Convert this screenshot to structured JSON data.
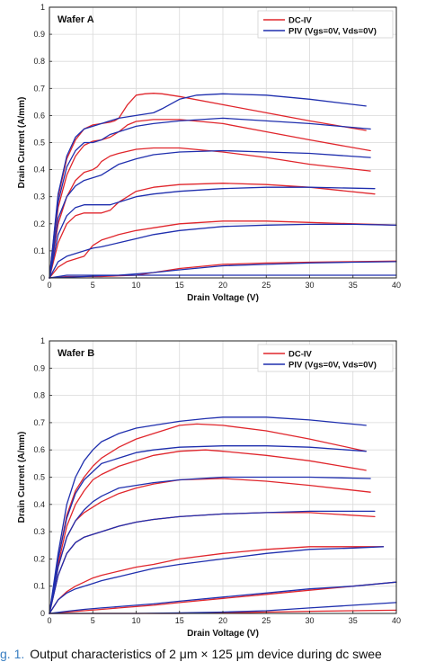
{
  "caption": {
    "figure_label": "g. 1.",
    "text": "Output characteristics of 2 μm × 125 μm device during dc swee"
  },
  "chart_data": [
    {
      "type": "line",
      "panel_label": "Wafer A",
      "xlabel": "Drain Voltage (V)",
      "ylabel": "Drain Current (A/mm)",
      "xlim": [
        0,
        40
      ],
      "ylim": [
        0,
        1
      ],
      "xticks": [
        "0",
        "5",
        "10",
        "15",
        "20",
        "25",
        "30",
        "35",
        "40"
      ],
      "yticks": [
        "0",
        "0.1",
        "0.2",
        "0.3",
        "0.4",
        "0.5",
        "0.6",
        "0.7",
        "0.8",
        "0.9",
        "1"
      ],
      "grid": true,
      "legend_position": "top-right",
      "legend": [
        {
          "label": "DC-IV",
          "color": "#e0262c"
        },
        {
          "label": "PIV (Vgs=0V, Vds=0V)",
          "color": "#1f2fae"
        }
      ],
      "series": [
        {
          "group": "DC-IV",
          "color": "#e0262c",
          "x": [
            0,
            1,
            2,
            3,
            4,
            5,
            6,
            7,
            7.5,
            8,
            9,
            10,
            11,
            12,
            13,
            15,
            20,
            25,
            30,
            36.5
          ],
          "y": [
            0,
            0.3,
            0.44,
            0.51,
            0.55,
            0.565,
            0.57,
            0.575,
            0.58,
            0.59,
            0.64,
            0.675,
            0.68,
            0.682,
            0.68,
            0.67,
            0.64,
            0.61,
            0.58,
            0.545
          ]
        },
        {
          "group": "DC-IV",
          "color": "#e0262c",
          "x": [
            0,
            1,
            2,
            3,
            4,
            5,
            6,
            7,
            8,
            9,
            10,
            12,
            15,
            20,
            25,
            30,
            37
          ],
          "y": [
            0,
            0.26,
            0.38,
            0.45,
            0.49,
            0.505,
            0.51,
            0.52,
            0.54,
            0.565,
            0.578,
            0.585,
            0.585,
            0.57,
            0.54,
            0.51,
            0.47
          ]
        },
        {
          "group": "DC-IV",
          "color": "#e0262c",
          "x": [
            0,
            1,
            2,
            3,
            4,
            5,
            5.5,
            6,
            7,
            8,
            10,
            12,
            15,
            20,
            25,
            30,
            37
          ],
          "y": [
            0,
            0.2,
            0.3,
            0.36,
            0.39,
            0.4,
            0.41,
            0.43,
            0.45,
            0.46,
            0.475,
            0.48,
            0.48,
            0.465,
            0.445,
            0.42,
            0.395
          ]
        },
        {
          "group": "DC-IV",
          "color": "#e0262c",
          "x": [
            0,
            1,
            2,
            3,
            4,
            5,
            6,
            7,
            8,
            10,
            12,
            15,
            20,
            25,
            30,
            37.5
          ],
          "y": [
            0,
            0.13,
            0.2,
            0.23,
            0.24,
            0.24,
            0.24,
            0.25,
            0.28,
            0.32,
            0.335,
            0.345,
            0.35,
            0.345,
            0.335,
            0.31
          ]
        },
        {
          "group": "DC-IV",
          "color": "#e0262c",
          "x": [
            0,
            1,
            2,
            3,
            4,
            5,
            6,
            7,
            8,
            10,
            12,
            15,
            20,
            25,
            30,
            35,
            40
          ],
          "y": [
            0,
            0.04,
            0.06,
            0.07,
            0.08,
            0.12,
            0.14,
            0.15,
            0.16,
            0.175,
            0.185,
            0.2,
            0.21,
            0.21,
            0.205,
            0.2,
            0.195
          ]
        },
        {
          "group": "DC-IV",
          "color": "#e0262c",
          "x": [
            0,
            2,
            4,
            6,
            8,
            10,
            12,
            15,
            20,
            25,
            30,
            35,
            40
          ],
          "y": [
            0,
            0.005,
            0.005,
            0.005,
            0.008,
            0.01,
            0.02,
            0.035,
            0.05,
            0.055,
            0.058,
            0.06,
            0.062
          ]
        },
        {
          "group": "PIV",
          "color": "#1f2fae",
          "x": [
            0,
            1,
            2,
            3,
            4,
            5,
            6,
            7,
            8,
            9,
            10,
            11,
            12,
            13,
            15,
            17,
            20,
            25,
            30,
            36.5
          ],
          "y": [
            0,
            0.31,
            0.45,
            0.52,
            0.55,
            0.56,
            0.57,
            0.58,
            0.59,
            0.595,
            0.6,
            0.605,
            0.61,
            0.625,
            0.66,
            0.675,
            0.68,
            0.675,
            0.66,
            0.635
          ]
        },
        {
          "group": "PIV",
          "color": "#1f2fae",
          "x": [
            0,
            1,
            2,
            3,
            4,
            5,
            6,
            7,
            8,
            10,
            12,
            15,
            20,
            25,
            30,
            37
          ],
          "y": [
            0,
            0.28,
            0.41,
            0.47,
            0.5,
            0.5,
            0.51,
            0.53,
            0.54,
            0.56,
            0.57,
            0.58,
            0.59,
            0.58,
            0.57,
            0.55
          ]
        },
        {
          "group": "PIV",
          "color": "#1f2fae",
          "x": [
            0,
            1,
            2,
            3,
            4,
            5,
            6,
            7,
            8,
            10,
            12,
            15,
            20,
            25,
            30,
            37
          ],
          "y": [
            0,
            0.22,
            0.3,
            0.34,
            0.36,
            0.37,
            0.38,
            0.4,
            0.42,
            0.44,
            0.455,
            0.465,
            0.47,
            0.465,
            0.46,
            0.445
          ]
        },
        {
          "group": "PIV",
          "color": "#1f2fae",
          "x": [
            0,
            1,
            2,
            3,
            4,
            5,
            6,
            7,
            8,
            10,
            12,
            15,
            20,
            25,
            30,
            37.5
          ],
          "y": [
            0,
            0.16,
            0.23,
            0.26,
            0.27,
            0.27,
            0.27,
            0.27,
            0.28,
            0.3,
            0.31,
            0.32,
            0.33,
            0.335,
            0.335,
            0.33
          ]
        },
        {
          "group": "PIV",
          "color": "#1f2fae",
          "x": [
            0,
            1,
            2,
            3,
            4,
            5,
            6,
            8,
            10,
            12,
            15,
            20,
            25,
            30,
            35,
            40
          ],
          "y": [
            0,
            0.06,
            0.08,
            0.09,
            0.1,
            0.11,
            0.115,
            0.13,
            0.145,
            0.16,
            0.175,
            0.19,
            0.195,
            0.198,
            0.198,
            0.195
          ]
        },
        {
          "group": "PIV",
          "color": "#1f2fae",
          "x": [
            0,
            2,
            4,
            6,
            8,
            10,
            12,
            15,
            20,
            25,
            30,
            35,
            40
          ],
          "y": [
            0,
            0.01,
            0.01,
            0.01,
            0.01,
            0.01,
            0.01,
            0.01,
            0.01,
            0.01,
            0.01,
            0.01,
            0.01
          ]
        },
        {
          "group": "PIV",
          "color": "#1f2fae",
          "x": [
            0,
            2,
            4,
            6,
            8,
            10,
            12,
            15,
            20,
            25,
            30,
            35,
            40
          ],
          "y": [
            0,
            0.003,
            0.005,
            0.008,
            0.01,
            0.015,
            0.02,
            0.03,
            0.045,
            0.05,
            0.055,
            0.058,
            0.06
          ]
        }
      ]
    },
    {
      "type": "line",
      "panel_label": "Wafer B",
      "xlabel": "Drain Voltage (V)",
      "ylabel": "Drain Current (A/mm)",
      "xlim": [
        0,
        40
      ],
      "ylim": [
        0,
        1
      ],
      "xticks": [
        "0",
        "5",
        "10",
        "15",
        "20",
        "25",
        "30",
        "35",
        "40"
      ],
      "yticks": [
        "0",
        "0.1",
        "0.2",
        "0.3",
        "0.4",
        "0.5",
        "0.6",
        "0.7",
        "0.8",
        "0.9",
        "1"
      ],
      "grid": true,
      "legend_position": "top-right",
      "legend": [
        {
          "label": "DC-IV",
          "color": "#e0262c"
        },
        {
          "label": "PIV (Vgs=0V, Vds=0V)",
          "color": "#1f2fae"
        }
      ],
      "series": [
        {
          "group": "DC-IV",
          "color": "#e0262c",
          "x": [
            0,
            1,
            2,
            3,
            4,
            5,
            6,
            8,
            10,
            12,
            15,
            17,
            20,
            25,
            30,
            36.5
          ],
          "y": [
            0,
            0.2,
            0.36,
            0.45,
            0.5,
            0.54,
            0.57,
            0.61,
            0.64,
            0.66,
            0.69,
            0.695,
            0.69,
            0.67,
            0.64,
            0.595
          ]
        },
        {
          "group": "DC-IV",
          "color": "#e0262c",
          "x": [
            0,
            1,
            2,
            3,
            4,
            5,
            6,
            8,
            10,
            12,
            15,
            18,
            20,
            25,
            30,
            36.5
          ],
          "y": [
            0,
            0.18,
            0.32,
            0.4,
            0.45,
            0.49,
            0.51,
            0.54,
            0.56,
            0.58,
            0.595,
            0.6,
            0.595,
            0.58,
            0.56,
            0.525
          ]
        },
        {
          "group": "DC-IV",
          "color": "#e0262c",
          "x": [
            0,
            1,
            2,
            3,
            4,
            5,
            6,
            8,
            10,
            12,
            15,
            20,
            25,
            30,
            37
          ],
          "y": [
            0,
            0.17,
            0.28,
            0.34,
            0.37,
            0.39,
            0.41,
            0.44,
            0.46,
            0.475,
            0.49,
            0.495,
            0.485,
            0.47,
            0.445
          ]
        },
        {
          "group": "DC-IV",
          "color": "#e0262c",
          "x": [
            0,
            1,
            2,
            3,
            4,
            5,
            6,
            8,
            10,
            12,
            15,
            20,
            25,
            30,
            37.5
          ],
          "y": [
            0,
            0.14,
            0.22,
            0.26,
            0.28,
            0.29,
            0.3,
            0.32,
            0.335,
            0.345,
            0.355,
            0.365,
            0.37,
            0.37,
            0.355
          ]
        },
        {
          "group": "DC-IV",
          "color": "#e0262c",
          "x": [
            0,
            1,
            2,
            3,
            4,
            5,
            6,
            8,
            10,
            12,
            15,
            20,
            25,
            30,
            35,
            38.5
          ],
          "y": [
            0,
            0.05,
            0.08,
            0.1,
            0.115,
            0.13,
            0.14,
            0.155,
            0.17,
            0.18,
            0.2,
            0.22,
            0.235,
            0.245,
            0.245,
            0.245
          ]
        },
        {
          "group": "DC-IV",
          "color": "#e0262c",
          "x": [
            0,
            2,
            4,
            6,
            8,
            10,
            12,
            15,
            20,
            25,
            30,
            35,
            40
          ],
          "y": [
            0,
            0.005,
            0.01,
            0.015,
            0.02,
            0.025,
            0.03,
            0.04,
            0.055,
            0.07,
            0.085,
            0.1,
            0.115
          ]
        },
        {
          "group": "DC-IV",
          "color": "#e0262c",
          "x": [
            0,
            5,
            10,
            15,
            20,
            25,
            30,
            35,
            40
          ],
          "y": [
            0,
            0,
            0,
            0,
            0.002,
            0.005,
            0.008,
            0.01,
            0.012
          ]
        },
        {
          "group": "PIV",
          "color": "#1f2fae",
          "x": [
            0,
            1,
            2,
            3,
            4,
            5,
            6,
            8,
            10,
            12,
            15,
            18,
            20,
            25,
            30,
            36.5
          ],
          "y": [
            0,
            0.22,
            0.4,
            0.5,
            0.56,
            0.6,
            0.63,
            0.66,
            0.68,
            0.69,
            0.705,
            0.715,
            0.72,
            0.72,
            0.71,
            0.69
          ]
        },
        {
          "group": "PIV",
          "color": "#1f2fae",
          "x": [
            0,
            1,
            2,
            3,
            4,
            5,
            6,
            8,
            10,
            12,
            15,
            20,
            25,
            30,
            36.5
          ],
          "y": [
            0,
            0.2,
            0.35,
            0.44,
            0.49,
            0.52,
            0.55,
            0.57,
            0.59,
            0.6,
            0.61,
            0.615,
            0.615,
            0.61,
            0.595
          ]
        },
        {
          "group": "PIV",
          "color": "#1f2fae",
          "x": [
            0,
            1,
            2,
            3,
            4,
            5,
            6,
            8,
            10,
            12,
            15,
            20,
            25,
            30,
            37
          ],
          "y": [
            0,
            0.17,
            0.28,
            0.34,
            0.38,
            0.41,
            0.43,
            0.46,
            0.47,
            0.48,
            0.49,
            0.5,
            0.5,
            0.5,
            0.495
          ]
        },
        {
          "group": "PIV",
          "color": "#1f2fae",
          "x": [
            0,
            1,
            2,
            3,
            4,
            5,
            6,
            8,
            10,
            12,
            15,
            20,
            25,
            30,
            37.5
          ],
          "y": [
            0,
            0.14,
            0.22,
            0.26,
            0.28,
            0.29,
            0.3,
            0.32,
            0.335,
            0.345,
            0.355,
            0.365,
            0.37,
            0.375,
            0.375
          ]
        },
        {
          "group": "PIV",
          "color": "#1f2fae",
          "x": [
            0,
            1,
            2,
            3,
            4,
            5,
            6,
            8,
            10,
            12,
            15,
            20,
            25,
            30,
            35,
            38.5
          ],
          "y": [
            0,
            0.05,
            0.075,
            0.09,
            0.1,
            0.11,
            0.12,
            0.135,
            0.15,
            0.165,
            0.18,
            0.2,
            0.22,
            0.235,
            0.24,
            0.245
          ]
        },
        {
          "group": "PIV",
          "color": "#1f2fae",
          "x": [
            0,
            2,
            4,
            6,
            8,
            10,
            12,
            15,
            20,
            25,
            30,
            35,
            40
          ],
          "y": [
            0,
            0.008,
            0.015,
            0.02,
            0.025,
            0.03,
            0.035,
            0.045,
            0.06,
            0.075,
            0.09,
            0.1,
            0.115
          ]
        },
        {
          "group": "PIV",
          "color": "#1f2fae",
          "x": [
            0,
            5,
            10,
            15,
            20,
            25,
            30,
            35,
            40
          ],
          "y": [
            0,
            0,
            0,
            0.002,
            0.005,
            0.01,
            0.02,
            0.03,
            0.04
          ]
        }
      ]
    }
  ]
}
